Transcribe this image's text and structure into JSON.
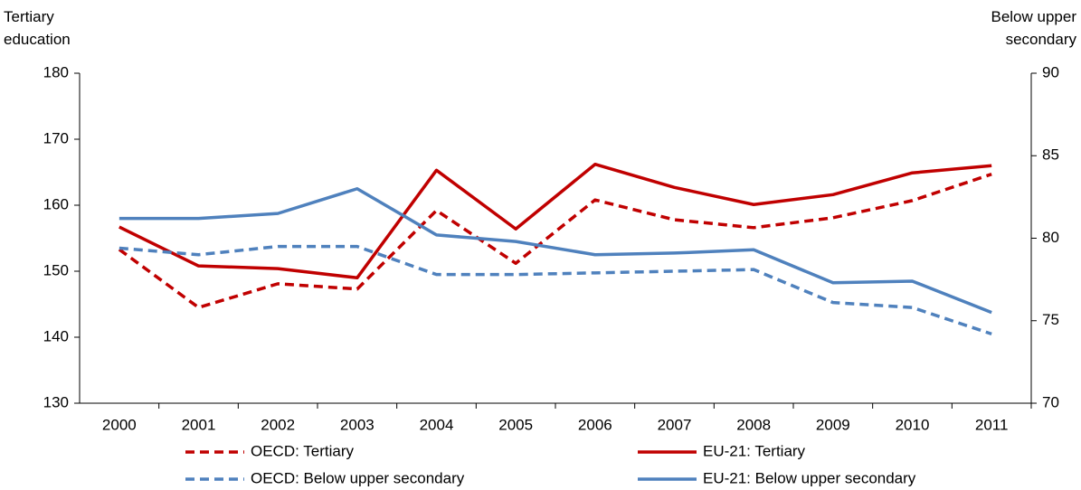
{
  "chart_data": {
    "type": "line",
    "ylabel": [
      "Tertiary",
      "education"
    ],
    "y2label": [
      "Below upper",
      "secondary"
    ],
    "categories": [
      "2000",
      "2001",
      "2002",
      "2003",
      "2004",
      "2005",
      "2006",
      "2007",
      "2008",
      "2009",
      "2010",
      "2011"
    ],
    "series": [
      {
        "name": "OECD: Tertiary",
        "color": "#c00000",
        "dashed": true,
        "values": [
          153.3,
          144.5,
          148.1,
          147.3,
          159.2,
          151.2,
          160.8,
          157.8,
          156.6,
          158.1,
          160.7,
          164.7
        ]
      },
      {
        "name": "EU-21: Tertiary",
        "color": "#c00000",
        "dashed": false,
        "values": [
          156.7,
          150.8,
          150.4,
          149.0,
          165.3,
          156.4,
          166.2,
          162.7,
          160.1,
          161.6,
          164.9,
          166.0
        ]
      },
      {
        "name": "OECD: Below upper secondary",
        "color": "#4f81bd",
        "dashed": true,
        "axis": "y2",
        "values": [
          79.4,
          79.0,
          79.5,
          79.5,
          77.8,
          77.8,
          77.9,
          78.0,
          78.1,
          76.1,
          75.8,
          74.2
        ]
      },
      {
        "name": "EU-21: Below upper secondary",
        "color": "#4f81bd",
        "dashed": false,
        "axis": "y2",
        "values": [
          81.2,
          81.2,
          81.5,
          83.0,
          80.2,
          79.8,
          79.0,
          79.1,
          79.3,
          77.3,
          77.4,
          75.5
        ]
      }
    ],
    "ylim": [
      130,
      180
    ],
    "yticks": [
      130,
      140,
      150,
      160,
      170,
      180
    ],
    "y2lim": [
      70,
      90
    ],
    "y2ticks": [
      70,
      75,
      80,
      85,
      90
    ]
  }
}
